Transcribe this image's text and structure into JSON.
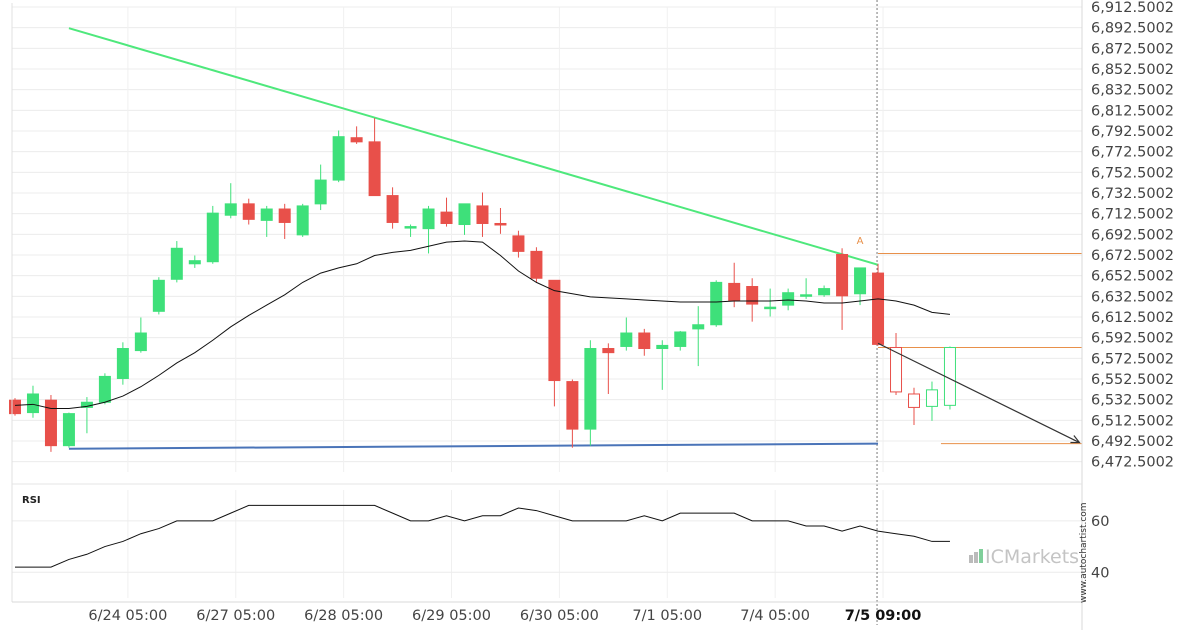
{
  "chart_data": {
    "type": "candlestick",
    "title": "",
    "price_axis": {
      "ylim": [
        6462.5,
        6912.5
      ],
      "ticks": [
        "6,912.5002",
        "6,892.5002",
        "6,872.5002",
        "6,852.5002",
        "6,832.5002",
        "6,812.5002",
        "6,792.5002",
        "6,772.5002",
        "6,752.5002",
        "6,732.5002",
        "6,712.5002",
        "6,692.5002",
        "6,672.5002",
        "6,652.5002",
        "6,632.5002",
        "6,612.5002",
        "6,592.5002",
        "6,572.5002",
        "6,552.5002",
        "6,532.5002",
        "6,512.5002",
        "6,492.5002",
        "6,472.5002"
      ]
    },
    "time_axis": {
      "labels": [
        "6/24 05:00",
        "6/27 05:00",
        "6/28 05:00",
        "6/29 05:00",
        "6/30 05:00",
        "7/1 05:00",
        "7/4 05:00",
        "7/5 09:00"
      ],
      "label_bar_index": [
        6,
        12,
        18,
        24,
        30,
        36,
        42,
        48
      ],
      "highlight_label": "7/5 09:00"
    },
    "colors": {
      "bull": "#3ee07a",
      "bear": "#e8504a",
      "resistance": "#4ee87c",
      "support": "#4a74b8",
      "target": "#e8904a",
      "axis_text": "#444444"
    },
    "candles": [
      {
        "o": 6532,
        "h": 6534,
        "l": 6517,
        "c": 6519
      },
      {
        "o": 6520,
        "h": 6546,
        "l": 6515,
        "c": 6538
      },
      {
        "o": 6532,
        "h": 6537,
        "l": 6482,
        "c": 6488
      },
      {
        "o": 6488,
        "h": 6520,
        "l": 6486,
        "c": 6519
      },
      {
        "o": 6525,
        "h": 6535,
        "l": 6500,
        "c": 6530
      },
      {
        "o": 6530,
        "h": 6558,
        "l": 6528,
        "c": 6555
      },
      {
        "o": 6553,
        "h": 6588,
        "l": 6547,
        "c": 6582
      },
      {
        "o": 6580,
        "h": 6612,
        "l": 6578,
        "c": 6597
      },
      {
        "o": 6618,
        "h": 6651,
        "l": 6615,
        "c": 6648
      },
      {
        "o": 6649,
        "h": 6686,
        "l": 6646,
        "c": 6679
      },
      {
        "o": 6664,
        "h": 6672,
        "l": 6660,
        "c": 6667
      },
      {
        "o": 6666,
        "h": 6720,
        "l": 6664,
        "c": 6713
      },
      {
        "o": 6711,
        "h": 6742,
        "l": 6708,
        "c": 6722
      },
      {
        "o": 6722,
        "h": 6727,
        "l": 6702,
        "c": 6707
      },
      {
        "o": 6706,
        "h": 6720,
        "l": 6690,
        "c": 6717
      },
      {
        "o": 6717,
        "h": 6722,
        "l": 6688,
        "c": 6704
      },
      {
        "o": 6692,
        "h": 6722,
        "l": 6690,
        "c": 6720
      },
      {
        "o": 6722,
        "h": 6760,
        "l": 6716,
        "c": 6745
      },
      {
        "o": 6745,
        "h": 6793,
        "l": 6743,
        "c": 6787
      },
      {
        "o": 6786,
        "h": 6797,
        "l": 6780,
        "c": 6782
      },
      {
        "o": 6782,
        "h": 6805,
        "l": 6730,
        "c": 6730
      },
      {
        "o": 6730,
        "h": 6738,
        "l": 6698,
        "c": 6704
      },
      {
        "o": 6700,
        "h": 6702,
        "l": 6690,
        "c": 6700
      },
      {
        "o": 6698,
        "h": 6720,
        "l": 6674,
        "c": 6717
      },
      {
        "o": 6714,
        "h": 6728,
        "l": 6700,
        "c": 6703
      },
      {
        "o": 6702,
        "h": 6722,
        "l": 6692,
        "c": 6722
      },
      {
        "o": 6720,
        "h": 6733,
        "l": 6690,
        "c": 6703
      },
      {
        "o": 6703,
        "h": 6718,
        "l": 6693,
        "c": 6702
      },
      {
        "o": 6691,
        "h": 6696,
        "l": 6670,
        "c": 6676
      },
      {
        "o": 6676,
        "h": 6680,
        "l": 6646,
        "c": 6650
      },
      {
        "o": 6648,
        "h": 6648,
        "l": 6526,
        "c": 6551
      },
      {
        "o": 6550,
        "h": 6552,
        "l": 6486,
        "c": 6504
      },
      {
        "o": 6504,
        "h": 6590,
        "l": 6488,
        "c": 6582
      },
      {
        "o": 6582,
        "h": 6587,
        "l": 6538,
        "c": 6578
      },
      {
        "o": 6584,
        "h": 6612,
        "l": 6580,
        "c": 6597
      },
      {
        "o": 6597,
        "h": 6601,
        "l": 6575,
        "c": 6582
      },
      {
        "o": 6582,
        "h": 6590,
        "l": 6542,
        "c": 6585
      },
      {
        "o": 6584,
        "h": 6599,
        "l": 6580,
        "c": 6598
      },
      {
        "o": 6601,
        "h": 6623,
        "l": 6565,
        "c": 6605
      },
      {
        "o": 6605,
        "h": 6648,
        "l": 6603,
        "c": 6646
      },
      {
        "o": 6645,
        "h": 6665,
        "l": 6622,
        "c": 6628
      },
      {
        "o": 6642,
        "h": 6650,
        "l": 6608,
        "c": 6625
      },
      {
        "o": 6622,
        "h": 6640,
        "l": 6613,
        "c": 6622
      },
      {
        "o": 6624,
        "h": 6640,
        "l": 6619,
        "c": 6636
      },
      {
        "o": 6634,
        "h": 6650,
        "l": 6630,
        "c": 6634
      },
      {
        "o": 6634,
        "h": 6643,
        "l": 6632,
        "c": 6640
      },
      {
        "o": 6673,
        "h": 6679,
        "l": 6600,
        "c": 6633
      },
      {
        "o": 6635,
        "h": 6660,
        "l": 6624,
        "c": 6660
      },
      {
        "o": 6655,
        "h": 6664,
        "l": 6585,
        "c": 6586
      },
      {
        "o": 6583,
        "h": 6597,
        "l": 6537,
        "c": 6540
      },
      {
        "o": 6538,
        "h": 6544,
        "l": 6508,
        "c": 6525
      },
      {
        "o": 6526,
        "h": 6550,
        "l": 6512,
        "c": 6542
      },
      {
        "o": 6527,
        "h": 6584,
        "l": 6523,
        "c": 6583
      }
    ],
    "projected_from_index": 49,
    "moving_average": [
      6527,
      6528,
      6524,
      6524,
      6526,
      6530,
      6536,
      6545,
      6556,
      6568,
      6578,
      6590,
      6603,
      6614,
      6624,
      6634,
      6646,
      6655,
      6660,
      6664,
      6672,
      6675,
      6677,
      6681,
      6685,
      6686,
      6685,
      6672,
      6657,
      6646,
      6638,
      6635,
      6632,
      6631,
      6630,
      6629,
      6628,
      6627,
      6627,
      6627,
      6628,
      6628,
      6628,
      6629,
      6628,
      6626,
      6626,
      6628,
      6630,
      6628,
      6624,
      6617,
      6615
    ],
    "resistance_line": {
      "x1": 3,
      "y1": 6892,
      "x2": 48,
      "y2": 6663
    },
    "support_line": {
      "x1": 3,
      "y1": 6485,
      "x2": 48,
      "y2": 6490
    },
    "target_levels": [
      {
        "x1": 48,
        "x2": 60,
        "y": 6674
      },
      {
        "x1": 48,
        "x2": 60,
        "y": 6583
      },
      {
        "x1": 51.5,
        "x2": 60,
        "y": 6490
      }
    ],
    "pattern_marker": {
      "label": "A",
      "x": 47,
      "y": 6683
    },
    "projection_arrow": {
      "x1": 48,
      "y1": 6587,
      "x2": 59.2,
      "y2": 6491
    },
    "vertical_marker_index": 48,
    "rsi": {
      "label": "RSI",
      "ylim": [
        30,
        72
      ],
      "ticks": [
        60,
        40
      ],
      "values": [
        42,
        42,
        42,
        45,
        47,
        50,
        52,
        55,
        57,
        60,
        60,
        60,
        63,
        66,
        66,
        66,
        66,
        66,
        66,
        66,
        66,
        63,
        60,
        60,
        62,
        60,
        62,
        62,
        65,
        64,
        62,
        60,
        60,
        60,
        60,
        62,
        60,
        63,
        63,
        63,
        63,
        60,
        60,
        60,
        58,
        58,
        56,
        58,
        56,
        55,
        54,
        52,
        52
      ]
    },
    "watermark": {
      "brand": "ICMarkets",
      "site": "www.autochartist.com"
    }
  }
}
